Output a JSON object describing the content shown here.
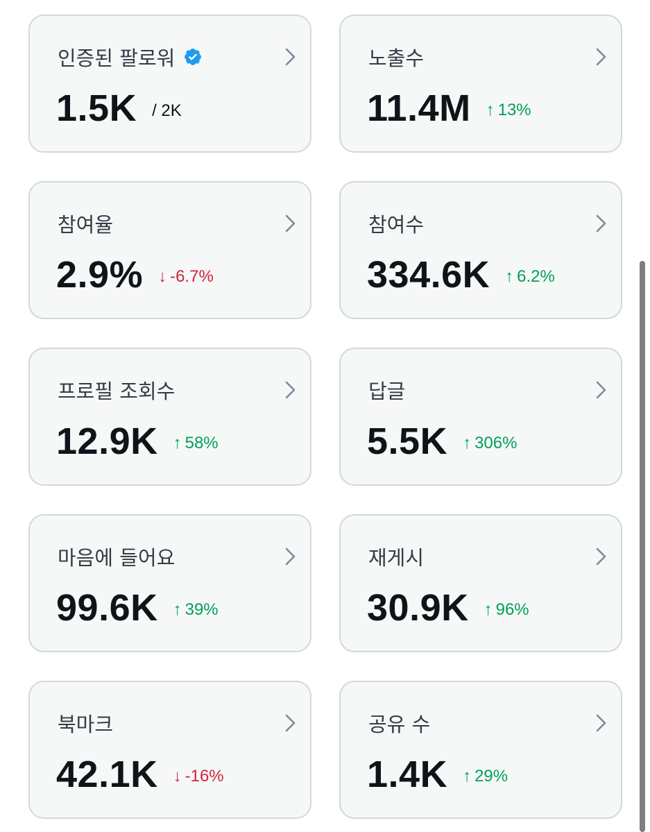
{
  "cards": [
    {
      "title": "인증된 팔로워",
      "value": "1.5K",
      "suffix": "/ 2K",
      "verified": true
    },
    {
      "title": "노출수",
      "value": "11.4M",
      "change": "13%",
      "trend": "up"
    },
    {
      "title": "참여율",
      "value": "2.9%",
      "change": "-6.7%",
      "trend": "down"
    },
    {
      "title": "참여수",
      "value": "334.6K",
      "change": "6.2%",
      "trend": "up"
    },
    {
      "title": "프로필 조회수",
      "value": "12.9K",
      "change": "58%",
      "trend": "up"
    },
    {
      "title": "답글",
      "value": "5.5K",
      "change": "306%",
      "trend": "up"
    },
    {
      "title": "마음에 들어요",
      "value": "99.6K",
      "change": "39%",
      "trend": "up"
    },
    {
      "title": "재게시",
      "value": "30.9K",
      "change": "96%",
      "trend": "up"
    },
    {
      "title": "북마크",
      "value": "42.1K",
      "change": "-16%",
      "trend": "down"
    },
    {
      "title": "공유 수",
      "value": "1.4K",
      "change": "29%",
      "trend": "up"
    }
  ],
  "icons": {
    "verified": "verified-badge-icon",
    "chevron": "chevron-right-icon",
    "up": "arrow-up-icon",
    "down": "arrow-down-icon"
  },
  "colors": {
    "up": "#00a05a",
    "down": "#d0243e",
    "verified": "#1d9bf0",
    "card_border": "#cfd9de",
    "card_bg": "#f6f7f7"
  }
}
